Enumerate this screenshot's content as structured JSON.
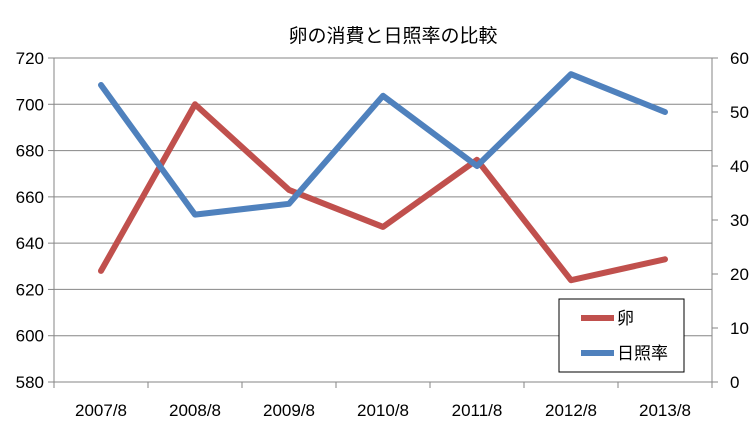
{
  "chart_data": {
    "type": "line",
    "title": "卵の消費と日照率の比較",
    "categories": [
      "2007/8",
      "2008/8",
      "2009/8",
      "2010/8",
      "2011/8",
      "2012/8",
      "2013/8"
    ],
    "series": [
      {
        "name": "卵",
        "axis": "left",
        "color": "#c0504d",
        "values": [
          628,
          700,
          663,
          647,
          676,
          624,
          633
        ]
      },
      {
        "name": "日照率",
        "axis": "right",
        "color": "#4f81bd",
        "values": [
          55,
          31,
          33,
          53,
          40,
          57,
          50
        ]
      }
    ],
    "y_left": {
      "min": 580,
      "max": 720,
      "step": 20,
      "ticks": [
        "580",
        "600",
        "620",
        "640",
        "660",
        "680",
        "700",
        "720"
      ]
    },
    "y_right": {
      "min": 0,
      "max": 60,
      "step": 10,
      "ticks": [
        "0",
        "10",
        "20",
        "30",
        "40",
        "50",
        "60"
      ]
    },
    "grid": "horizontal",
    "legend_position": "bottom-right",
    "xlabel": "",
    "ylabel": ""
  }
}
